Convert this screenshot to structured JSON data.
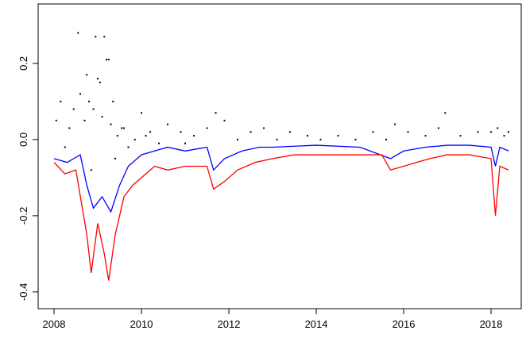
{
  "chart_data": {
    "type": "line",
    "xlim": [
      2007.636,
      2018.69
    ],
    "ylim": [
      -0.444,
      0.356
    ],
    "xticks": [
      2008,
      2010,
      2012,
      2014,
      2016,
      2018
    ],
    "yticks": [
      {
        "value": -0.4,
        "label": "-0.4"
      },
      {
        "value": -0.2,
        "label": "-0.2"
      },
      {
        "value": 0,
        "label": "0.0"
      },
      0.2
    ],
    "series": [
      {
        "mode": "points",
        "color": "#000000",
        "x": [
          2008.05,
          2008.15,
          2008.25,
          2008.35,
          2008.45,
          2008.55,
          2008.6,
          2008.7,
          2008.75,
          2008.8,
          2008.9,
          2008.95,
          2009.0,
          2009.05,
          2009.1,
          2009.15,
          2009.2,
          2009.25,
          2009.3,
          2009.35,
          2009.45,
          2009.55,
          2009.7,
          2009.85,
          2010.0,
          2010.2,
          2010.4,
          2010.6,
          2010.9,
          2011.2,
          2011.5,
          2011.7,
          2011.9,
          2012.2,
          2012.5,
          2012.8,
          2013.1,
          2013.4,
          2013.8,
          2014.1,
          2014.5,
          2014.9,
          2015.3,
          2015.6,
          2015.8,
          2016.1,
          2016.5,
          2016.8,
          2016.95,
          2017.3,
          2017.7,
          2018.0,
          2018.15,
          2018.3,
          2018.4,
          2009.4,
          2008.85,
          2009.6,
          2010.1,
          2011.0
        ],
        "values": [
          0.05,
          0.1,
          -0.02,
          0.03,
          0.08,
          0.28,
          0.12,
          0.05,
          0.17,
          0.1,
          0.08,
          0.27,
          0.16,
          0.15,
          0.06,
          0.27,
          0.21,
          0.21,
          0.04,
          0.1,
          0.01,
          0.03,
          -0.02,
          0.0,
          0.07,
          0.02,
          -0.01,
          0.04,
          0.02,
          0.01,
          0.03,
          0.07,
          0.05,
          0.0,
          0.02,
          0.03,
          0.0,
          0.02,
          0.01,
          0.0,
          0.01,
          0.0,
          0.02,
          0.0,
          0.04,
          0.02,
          0.01,
          0.03,
          0.07,
          0.01,
          0.02,
          0.02,
          0.03,
          0.01,
          0.02,
          -0.05,
          -0.08,
          0.03,
          0.01,
          -0.01
        ]
      },
      {
        "mode": "lines",
        "color": "#0000ff",
        "x": [
          2008.0,
          2008.3,
          2008.6,
          2008.75,
          2008.9,
          2009.1,
          2009.3,
          2009.5,
          2009.7,
          2010.0,
          2010.3,
          2010.6,
          2011.0,
          2011.5,
          2011.65,
          2011.9,
          2012.3,
          2012.7,
          2013.0,
          2014.0,
          2015.0,
          2015.7,
          2016.0,
          2016.5,
          2017.0,
          2017.5,
          2018.0,
          2018.1,
          2018.2,
          2018.4
        ],
        "values": [
          -0.05,
          -0.06,
          -0.04,
          -0.12,
          -0.18,
          -0.15,
          -0.19,
          -0.12,
          -0.07,
          -0.04,
          -0.03,
          -0.02,
          -0.03,
          -0.02,
          -0.08,
          -0.05,
          -0.03,
          -0.02,
          -0.02,
          -0.015,
          -0.02,
          -0.05,
          -0.03,
          -0.02,
          -0.015,
          -0.015,
          -0.02,
          -0.07,
          -0.02,
          -0.03
        ]
      },
      {
        "mode": "lines",
        "color": "#ff0000",
        "x": [
          2008.0,
          2008.25,
          2008.5,
          2008.75,
          2008.85,
          2009.0,
          2009.15,
          2009.25,
          2009.4,
          2009.6,
          2009.8,
          2010.0,
          2010.3,
          2010.6,
          2011.0,
          2011.5,
          2011.65,
          2011.9,
          2012.2,
          2012.6,
          2013.0,
          2013.5,
          2014.0,
          2014.5,
          2015.0,
          2015.5,
          2015.7,
          2016.0,
          2016.3,
          2016.6,
          2017.0,
          2017.5,
          2018.0,
          2018.1,
          2018.2,
          2018.4
        ],
        "values": [
          -0.06,
          -0.09,
          -0.08,
          -0.25,
          -0.35,
          -0.22,
          -0.3,
          -0.37,
          -0.25,
          -0.15,
          -0.12,
          -0.1,
          -0.07,
          -0.08,
          -0.07,
          -0.07,
          -0.13,
          -0.11,
          -0.08,
          -0.06,
          -0.05,
          -0.04,
          -0.04,
          -0.04,
          -0.04,
          -0.04,
          -0.08,
          -0.07,
          -0.06,
          -0.05,
          -0.04,
          -0.04,
          -0.05,
          -0.2,
          -0.07,
          -0.08
        ]
      }
    ]
  }
}
